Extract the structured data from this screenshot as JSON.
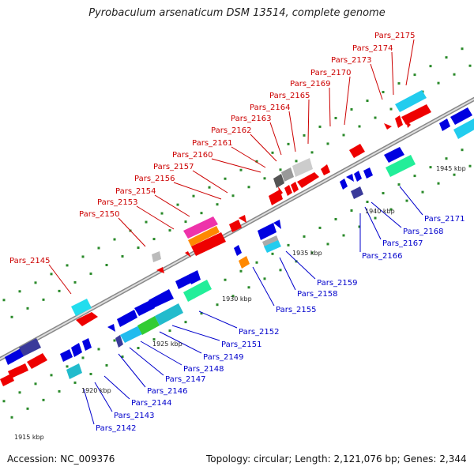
{
  "title": "Pyrobaculum arsenaticum DSM 13514, complete genome",
  "accession": "Accession: NC_009376",
  "summary": "Topology: circular; Length: 2,121,076 bp; Genes: 2,344",
  "colors": {
    "forward_label": "#cc0000",
    "reverse_label": "#0000cc",
    "backbone": "#9a9a9a",
    "tick": "#2a8a2a"
  },
  "kbp_labels": [
    "1915 kbp",
    "1920 kbp",
    "1925 kbp",
    "1930 kbp",
    "1935 kbp",
    "1940 kbp",
    "1945 kbp"
  ],
  "top_genes": [
    "Pars_2145",
    "Pars_2150",
    "Pars_2153",
    "Pars_2154",
    "Pars_2156",
    "Pars_2157",
    "Pars_2160",
    "Pars_2161",
    "Pars_2162",
    "Pars_2163",
    "Pars_2164",
    "Pars_2165",
    "Pars_2169",
    "Pars_2170",
    "Pars_2173",
    "Pars_2174",
    "Pars_2175"
  ],
  "bottom_genes": [
    "Pars_2142",
    "Pars_2143",
    "Pars_2144",
    "Pars_2146",
    "Pars_2147",
    "Pars_2148",
    "Pars_2149",
    "Pars_2151",
    "Pars_2152",
    "Pars_2155",
    "Pars_2158",
    "Pars_2159",
    "Pars_2166",
    "Pars_2167",
    "Pars_2168",
    "Pars_2171"
  ]
}
